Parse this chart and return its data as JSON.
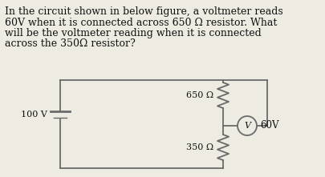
{
  "title_lines": [
    "In the circuit shown in below figure, a voltmeter reads",
    "60V when it is connected across 650 Ω resistor. What",
    "will be the voltmeter reading when it is connected",
    "across the 350Ω resistor?"
  ],
  "title_fontsize": 9.0,
  "bg_color": "#eeebe3",
  "circuit_color": "#6a6a6a",
  "text_color": "#111111",
  "battery_label": "100 V",
  "resistor1_label": "650 Ω",
  "resistor2_label": "350 Ω",
  "voltmeter_label": "V",
  "reading_label": "60V",
  "line_width": 1.3
}
